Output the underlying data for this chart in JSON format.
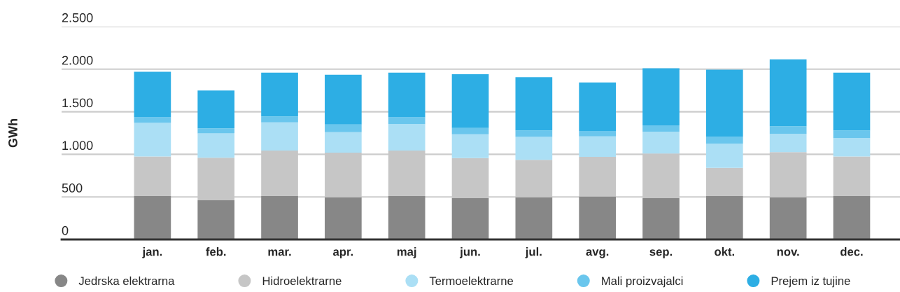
{
  "chart_data": {
    "type": "bar",
    "stacked": true,
    "ylabel": "GWh",
    "categories": [
      "jan.",
      "feb.",
      "mar.",
      "apr.",
      "maj",
      "jun.",
      "jul.",
      "avg.",
      "sep.",
      "okt.",
      "nov.",
      "dec."
    ],
    "series": [
      {
        "name": "Jedrska elektrarna",
        "color": "#878787",
        "values": [
          510,
          460,
          510,
          495,
          510,
          485,
          495,
          505,
          485,
          510,
          495,
          510
        ]
      },
      {
        "name": "Hidroelektrarne",
        "color": "#c6c6c6",
        "values": [
          465,
          500,
          535,
          525,
          535,
          470,
          440,
          465,
          525,
          330,
          530,
          465
        ]
      },
      {
        "name": "Termoelektrarne",
        "color": "#abdff5",
        "values": [
          395,
          285,
          330,
          240,
          310,
          280,
          270,
          240,
          255,
          285,
          215,
          215
        ]
      },
      {
        "name": "Mali proizvajalci",
        "color": "#6ac6ed",
        "values": [
          65,
          60,
          70,
          90,
          80,
          75,
          75,
          65,
          75,
          80,
          90,
          90
        ]
      },
      {
        "name": "Prejem iz tujine",
        "color": "#2daee4",
        "values": [
          535,
          445,
          515,
          585,
          525,
          630,
          625,
          570,
          670,
          790,
          785,
          680
        ]
      }
    ],
    "ylim": [
      0,
      2500
    ],
    "yticks": [
      0,
      500,
      {
        "value": 1000,
        "label": "1.000"
      },
      {
        "value": 1500,
        "label": "1.500"
      },
      {
        "value": 2000,
        "label": "2.000"
      },
      {
        "value": 2500,
        "label": "2.500"
      }
    ],
    "grid": "y",
    "legend": "bottom"
  }
}
